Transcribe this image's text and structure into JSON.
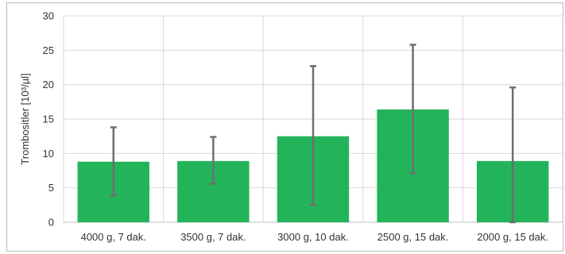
{
  "chart_data": {
    "type": "bar",
    "title": "",
    "xlabel": "",
    "ylabel": "Trombositler [10³/µl]",
    "categories": [
      "4000 g, 7 dak.",
      "3500 g, 7 dak.",
      "3000 g, 10 dak.",
      "2500 g, 15 dak.",
      "2000 g, 15 dak."
    ],
    "series": [
      {
        "values": [
          8.8,
          8.9,
          12.5,
          16.4,
          8.9
        ],
        "error_low": [
          3.9,
          5.6,
          2.5,
          7.1,
          0
        ],
        "error_high": [
          13.8,
          12.4,
          22.7,
          25.8,
          19.6
        ]
      }
    ],
    "ylim": [
      0,
      30
    ],
    "yticks": [
      0,
      5,
      10,
      15,
      20,
      25,
      30
    ],
    "grid": true,
    "legend": "none",
    "colors": {
      "bar": "#23b45a",
      "error_bar": "#6f6f6f",
      "grid": "#d9d9d9",
      "axis": "#bfbfbf"
    }
  }
}
